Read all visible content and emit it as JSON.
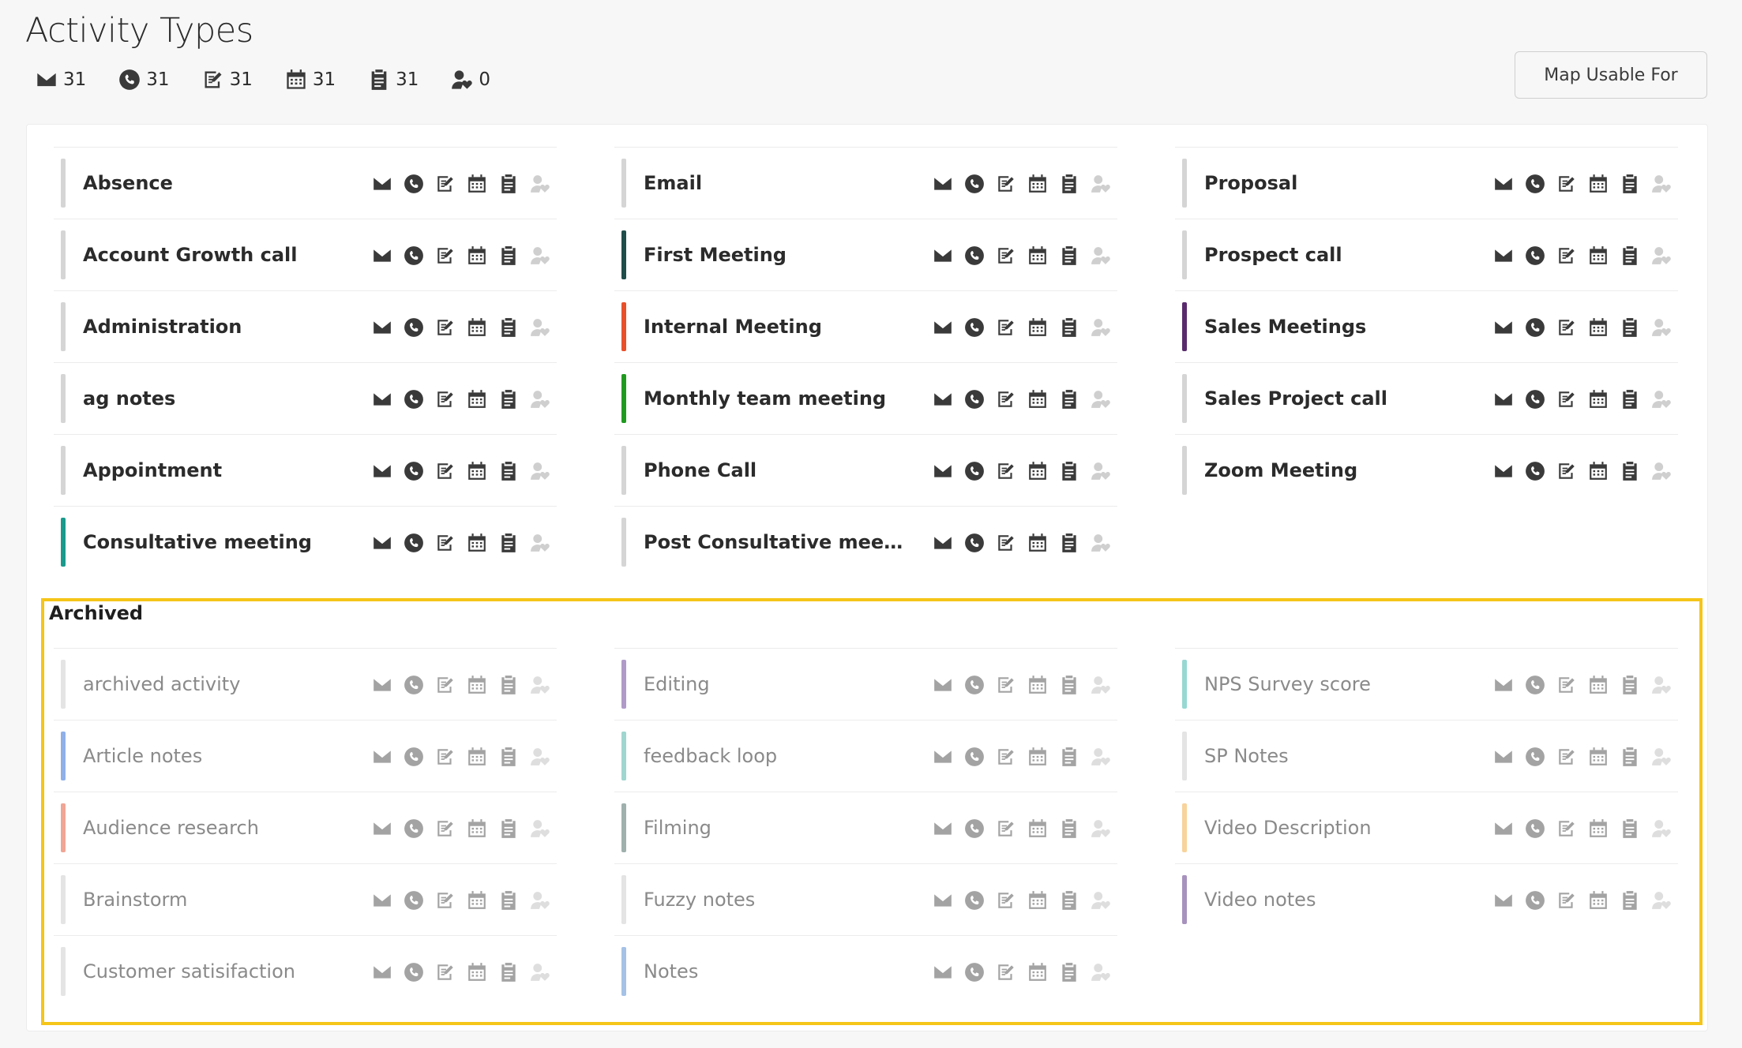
{
  "page": {
    "title": "Activity Types"
  },
  "counts": [
    {
      "icon": "envelope-icon",
      "value": "31"
    },
    {
      "icon": "phone-icon",
      "value": "31"
    },
    {
      "icon": "edit-note-icon",
      "value": "31"
    },
    {
      "icon": "calendar-icon",
      "value": "31"
    },
    {
      "icon": "clipboard-icon",
      "value": "31"
    },
    {
      "icon": "user-heart-icon",
      "value": "0"
    }
  ],
  "map_button": {
    "label": "Map Usable For"
  },
  "usable_icons": [
    "envelope-icon",
    "phone-icon",
    "edit-note-icon",
    "calendar-icon",
    "clipboard-icon",
    "user-heart-icon"
  ],
  "active": {
    "columns": [
      [
        {
          "name": "Absence",
          "color": "#d5d5d5"
        },
        {
          "name": "Account Growth call",
          "color": "#d5d5d5"
        },
        {
          "name": "Administration",
          "color": "#d5d5d5"
        },
        {
          "name": "ag notes",
          "color": "#d5d5d5"
        },
        {
          "name": "Appointment",
          "color": "#d5d5d5"
        },
        {
          "name": "Consultative meeting",
          "color": "#1a9a8c"
        }
      ],
      [
        {
          "name": "Email",
          "color": "#d5d5d5"
        },
        {
          "name": "First Meeting",
          "color": "#1f4d4a"
        },
        {
          "name": "Internal Meeting",
          "color": "#e8502a"
        },
        {
          "name": "Monthly team meeting",
          "color": "#1f9a1f"
        },
        {
          "name": "Phone Call",
          "color": "#d5d5d5"
        },
        {
          "name": "Post Consultative meeting ...",
          "color": "#d5d5d5"
        }
      ],
      [
        {
          "name": "Proposal",
          "color": "#d5d5d5"
        },
        {
          "name": "Prospect call",
          "color": "#d5d5d5"
        },
        {
          "name": "Sales Meetings",
          "color": "#5a2a6e"
        },
        {
          "name": "Sales Project call",
          "color": "#d5d5d5"
        },
        {
          "name": "Zoom Meeting",
          "color": "#d5d5d5"
        }
      ]
    ]
  },
  "archived": {
    "label": "Archived",
    "columns": [
      [
        {
          "name": "archived activity",
          "color": "#e4e4e4"
        },
        {
          "name": "Article notes",
          "color": "#8fb0e8"
        },
        {
          "name": "Audience research",
          "color": "#f0a595"
        },
        {
          "name": "Brainstorm",
          "color": "#e4e4e4"
        },
        {
          "name": "Customer satisifaction",
          "color": "#e4e4e4"
        }
      ],
      [
        {
          "name": "Editing",
          "color": "#b09bc8"
        },
        {
          "name": "feedback loop",
          "color": "#9fd6cf"
        },
        {
          "name": "Filming",
          "color": "#9fb0ad"
        },
        {
          "name": "Fuzzy notes",
          "color": "#e4e4e4"
        },
        {
          "name": "Notes",
          "color": "#a5c2e6"
        }
      ],
      [
        {
          "name": "NPS Survey score",
          "color": "#97d8d3"
        },
        {
          "name": "SP Notes",
          "color": "#e4e4e4"
        },
        {
          "name": "Video Description",
          "color": "#f8d39b"
        },
        {
          "name": "Video notes",
          "color": "#a792bd"
        }
      ]
    ]
  }
}
